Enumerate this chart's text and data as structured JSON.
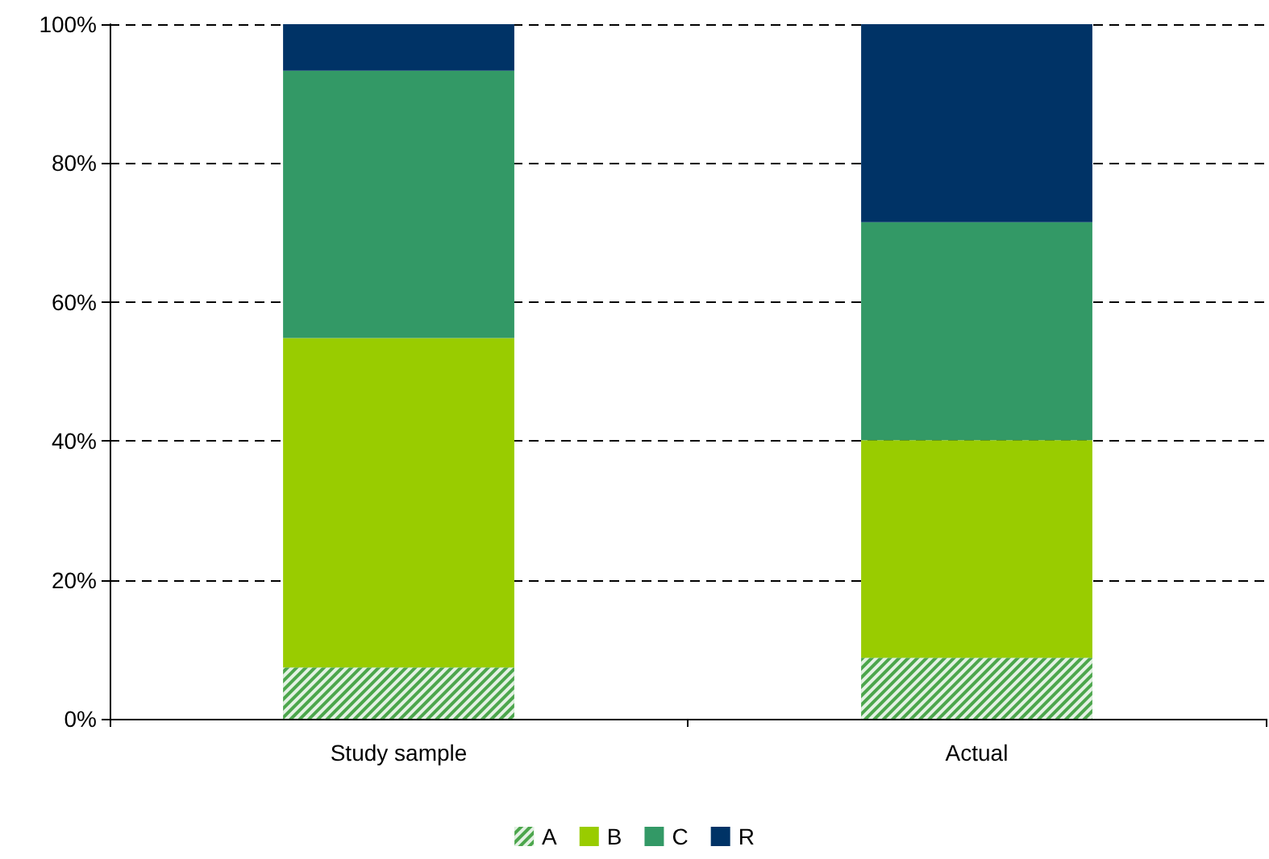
{
  "chart_data": {
    "type": "bar",
    "stacked": true,
    "categories": [
      "Study sample",
      "Actual"
    ],
    "series": [
      {
        "name": "A",
        "color": "#4ca64c",
        "values": [
          7.4,
          8.8
        ]
      },
      {
        "name": "B",
        "color": "#99cc00",
        "values": [
          47.4,
          31.3
        ]
      },
      {
        "name": "C",
        "color": "#339966",
        "values": [
          38.5,
          31.4
        ]
      },
      {
        "name": "R",
        "color": "#003366",
        "values": [
          6.7,
          28.5
        ]
      }
    ],
    "ylim": [
      0,
      100
    ],
    "yticks": [
      {
        "value": 0,
        "label": "0%"
      },
      {
        "value": 20,
        "label": "20%"
      },
      {
        "value": 40,
        "label": "40%"
      },
      {
        "value": 60,
        "label": "60%"
      },
      {
        "value": 80,
        "label": "80%"
      },
      {
        "value": 100,
        "label": "100%"
      }
    ],
    "grid": "y",
    "legend": "bottom"
  }
}
